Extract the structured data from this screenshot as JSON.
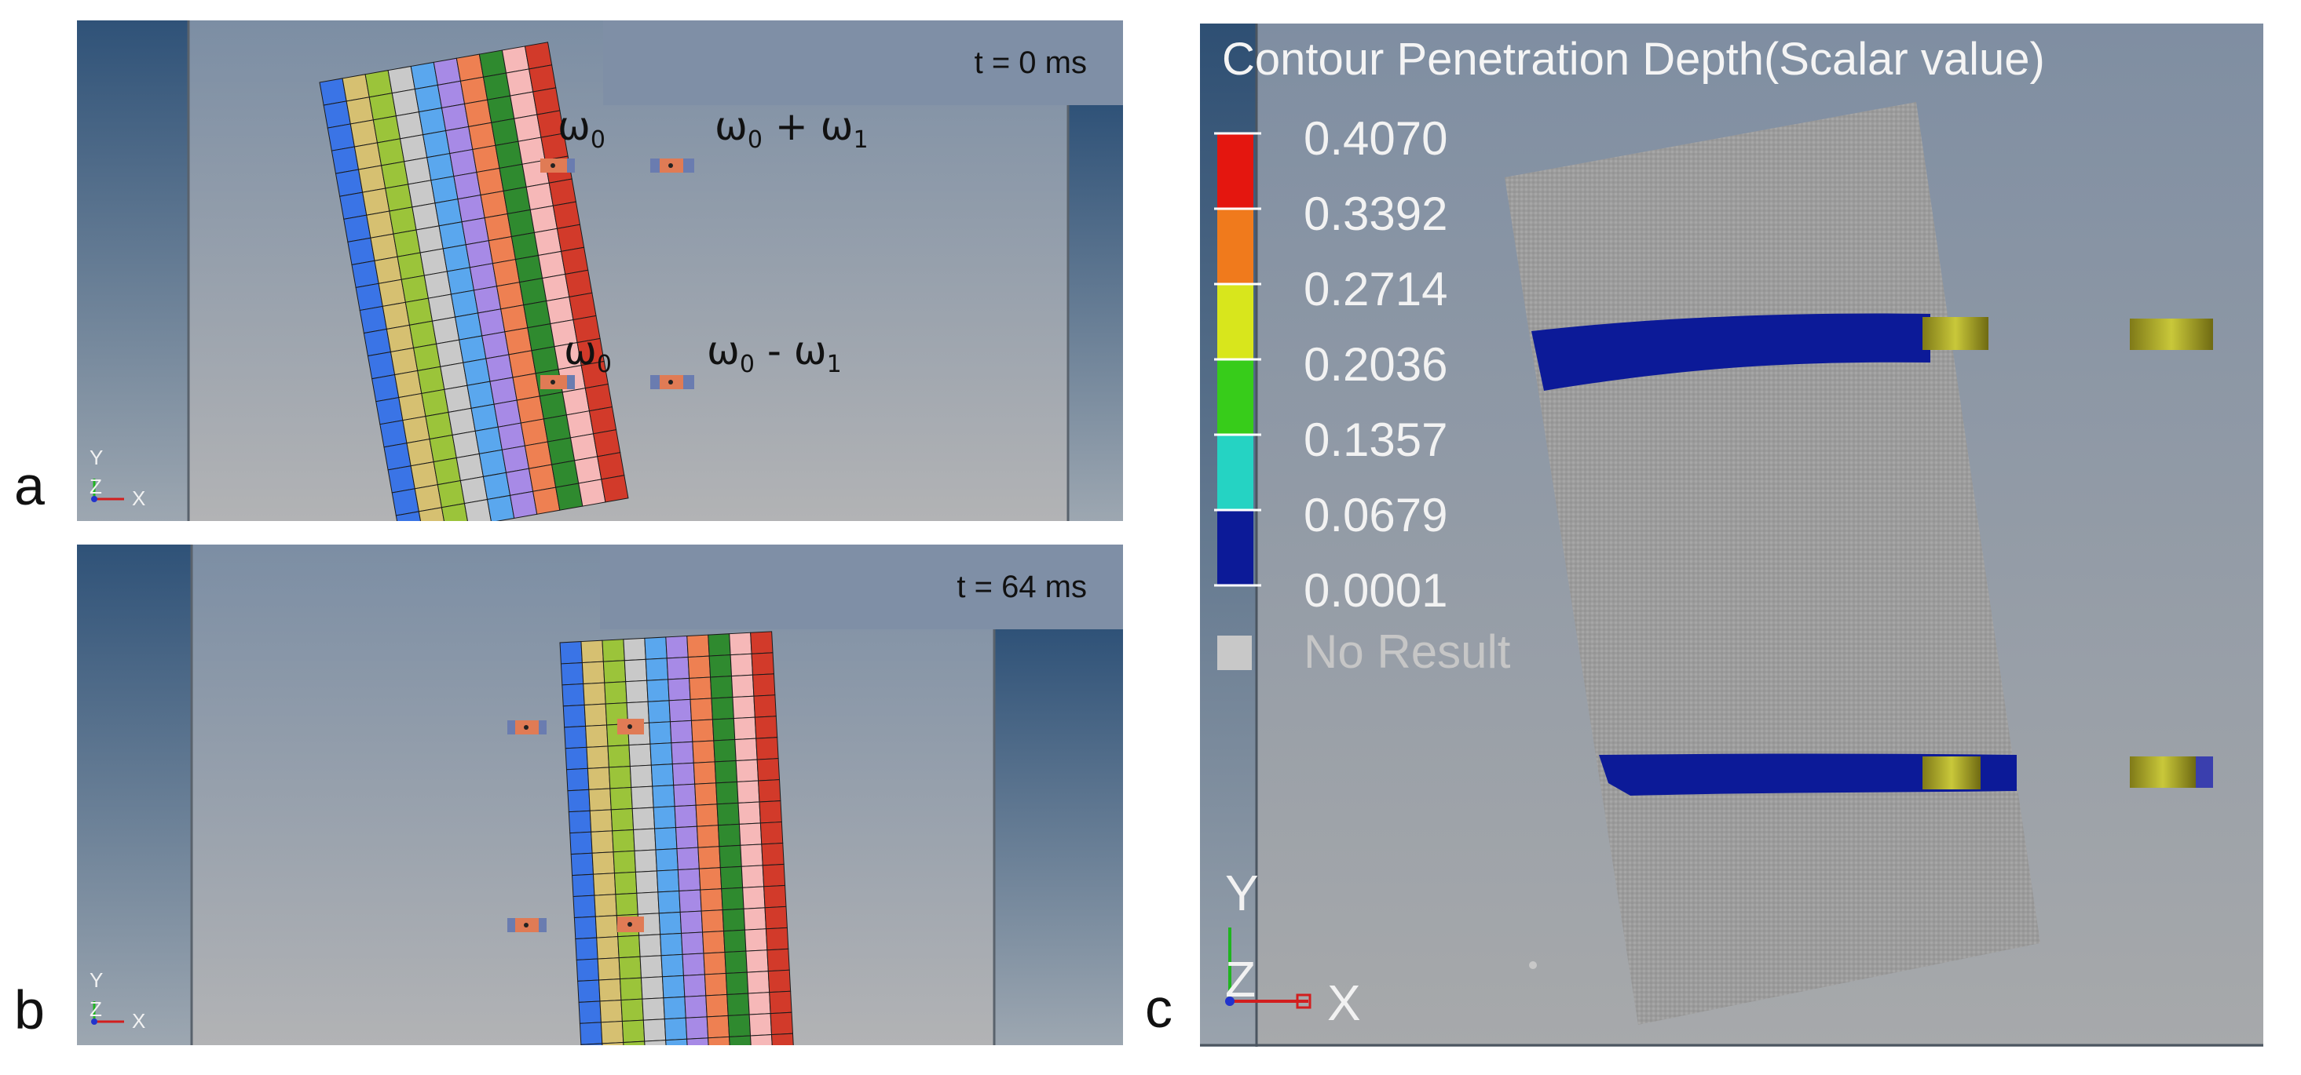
{
  "panels": {
    "a": {
      "label": "a",
      "time": "t = 0 ms",
      "omega_top_left": "ω",
      "omega_top_left_sub": "0",
      "omega_top_right": "ω",
      "omega_top_right_sub1": "0",
      "omega_top_right_op": " + ω",
      "omega_top_right_sub2": "1",
      "omega_bot_left": "ω",
      "omega_bot_left_sub": "0",
      "omega_bot_right": "ω",
      "omega_bot_right_sub1": "0",
      "omega_bot_right_op": " - ω",
      "omega_bot_right_sub2": "1",
      "axis_y": "Y",
      "axis_z": "Z",
      "axis_x": "X"
    },
    "b": {
      "label": "b",
      "time": "t = 64 ms",
      "axis_y": "Y",
      "axis_z": "Z",
      "axis_x": "X"
    },
    "c": {
      "label": "c",
      "axis_y": "Y",
      "axis_z": "Z",
      "axis_x": "X",
      "legend": {
        "title": "Contour Penetration Depth(Scalar value)",
        "values": [
          "0.4070",
          "0.3392",
          "0.2714",
          "0.2036",
          "0.1357",
          "0.0679",
          "0.0001"
        ],
        "colors": [
          "#e4160f",
          "#f07a1c",
          "#d8e61c",
          "#37cc1a",
          "#25d3c3",
          "#0c1a98"
        ],
        "no_result": "No Result",
        "no_result_color": "#c8c8c8"
      },
      "band_color": "#0c1a98"
    }
  },
  "column_colors": [
    "#3a74e6",
    "#d6c071",
    "#9bc43a",
    "#c9c9c9",
    "#5aa7ee",
    "#a78ae6",
    "#ee8052",
    "#2f8a2f",
    "#f6b8b8",
    "#d23a2a"
  ]
}
